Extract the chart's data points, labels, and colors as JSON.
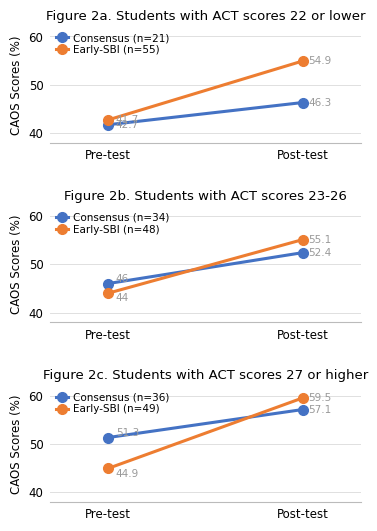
{
  "panels": [
    {
      "title": "Figure 2a. Students with ACT scores 22 or lower",
      "consensus_label": "Consensus (n=21)",
      "earlysbi_label": "Early-SBI (n=55)",
      "consensus_pre": 41.7,
      "consensus_post": 46.3,
      "earlysbi_pre": 42.7,
      "earlysbi_post": 54.9,
      "ylim": [
        38,
        62
      ],
      "yticks": [
        40,
        50,
        60
      ],
      "pre_label_consensus": "41.7",
      "pre_label_earlysbi": "42.7",
      "post_label_consensus": "46.3",
      "post_label_earlysbi": "54.9",
      "pre_annot_cons_va": "bottom",
      "pre_annot_esbi_va": "top"
    },
    {
      "title": "Figure 2b. Students with ACT scores 23-26",
      "consensus_label": "Consensus (n=34)",
      "earlysbi_label": "Early-SBI (n=48)",
      "consensus_pre": 46.0,
      "consensus_post": 52.4,
      "earlysbi_pre": 44.0,
      "earlysbi_post": 55.1,
      "ylim": [
        38,
        62
      ],
      "yticks": [
        40,
        50,
        60
      ],
      "pre_label_consensus": "46",
      "pre_label_earlysbi": "44",
      "post_label_consensus": "52.4",
      "post_label_earlysbi": "55.1",
      "pre_annot_cons_va": "bottom",
      "pre_annot_esbi_va": "top"
    },
    {
      "title": "Figure 2c. Students with ACT scores 27 or higher",
      "consensus_label": "Consensus (n=36)",
      "earlysbi_label": "Early-SBI (n=49)",
      "consensus_pre": 51.3,
      "consensus_post": 57.1,
      "earlysbi_pre": 44.9,
      "earlysbi_post": 59.5,
      "ylim": [
        38,
        62
      ],
      "yticks": [
        40,
        50,
        60
      ],
      "pre_label_consensus": "51.3",
      "pre_label_earlysbi": "44.9",
      "post_label_consensus": "57.1",
      "post_label_earlysbi": "59.5",
      "pre_annot_cons_va": "bottom",
      "pre_annot_esbi_va": "top"
    }
  ],
  "consensus_color": "#4472c4",
  "earlysbi_color": "#ed7d31",
  "xlabel": [
    "Pre-test",
    "Post-test"
  ],
  "ylabel": "CAOS Scores (%)",
  "bg_color": "#ffffff",
  "label_color": "#999999",
  "marker": "o",
  "linewidth": 2.2,
  "markersize": 7,
  "title_fontsize": 9.5,
  "label_fontsize": 8.5,
  "tick_fontsize": 8.5,
  "annotation_fontsize": 7.5,
  "border_color": "#bbbbbb"
}
